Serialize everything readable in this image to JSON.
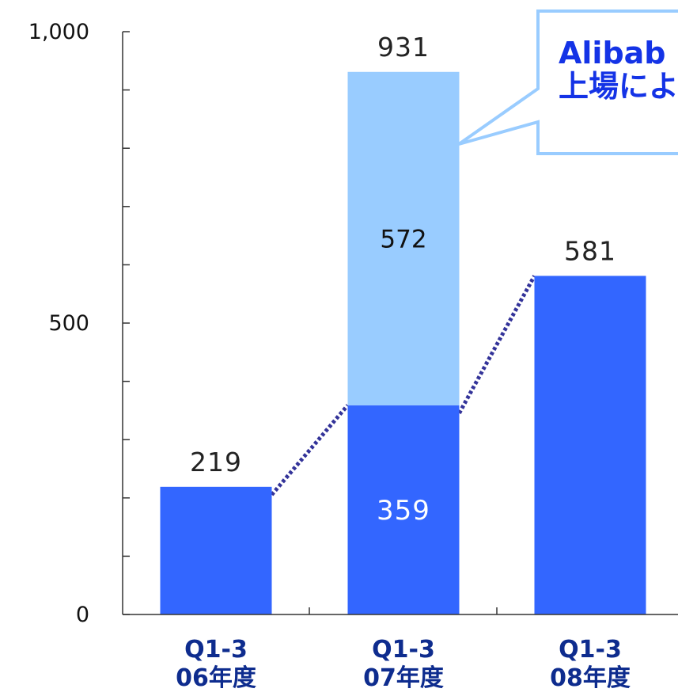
{
  "chart_data": {
    "type": "bar",
    "stacked": true,
    "categories": [
      [
        "Q1-3",
        "06年度"
      ],
      [
        "Q1-3",
        "07年度"
      ],
      [
        "Q1-3",
        "08年度"
      ]
    ],
    "series": [
      {
        "values": [
          219,
          359,
          581
        ],
        "color": "#3366ff"
      },
      {
        "values": [
          0,
          572,
          0
        ],
        "color": "#99ccff"
      }
    ],
    "totals": [
      219,
      931,
      581
    ],
    "segment_labels": [
      "359",
      "572"
    ],
    "total_labels": [
      "219",
      "931",
      "581"
    ],
    "ylim": [
      0,
      1000
    ],
    "yticks": [
      0,
      500,
      1000
    ],
    "ytick_labels": [
      "0",
      "500",
      "1,000"
    ],
    "grid": false,
    "connector": {
      "style": "dotted",
      "color": "#333399"
    },
    "annotation": {
      "lines": [
        "Alibab",
        "上場によ"
      ],
      "text_color": "#1433e6",
      "border_color": "#99ccff",
      "points_to": "07年度 upper segment"
    },
    "category_label_color": "#0e2c8e"
  }
}
